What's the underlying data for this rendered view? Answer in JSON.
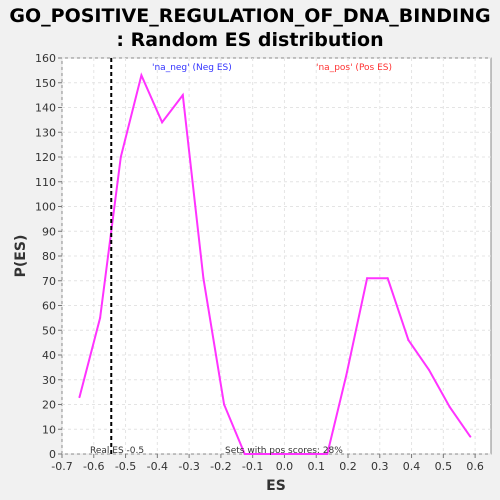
{
  "chart_data": {
    "type": "line",
    "title_line1": "GO_POSITIVE_REGULATION_OF_DNA_BINDING",
    "title_line2": ": Random ES distribution",
    "xlabel": "ES",
    "ylabel": "P(ES)",
    "xlim": [
      -0.7,
      0.65
    ],
    "ylim": [
      0,
      160
    ],
    "xticks": [
      "-0.7",
      "-0.6",
      "-0.5",
      "-0.4",
      "-0.3",
      "-0.2",
      "-0.1",
      "0.0",
      "0.1",
      "0.2",
      "0.3",
      "0.4",
      "0.5",
      "0.6"
    ],
    "yticks": [
      "0",
      "10",
      "20",
      "30",
      "40",
      "50",
      "60",
      "70",
      "80",
      "90",
      "100",
      "110",
      "120",
      "130",
      "140",
      "150",
      "160"
    ],
    "grid": true,
    "series": [
      {
        "color": "#ff33ff",
        "x": [
          -0.645,
          -0.58,
          -0.515,
          -0.45,
          -0.385,
          -0.32,
          -0.255,
          -0.19,
          -0.125,
          -0.06,
          0.005,
          0.07,
          0.135,
          0.195,
          0.26,
          0.325,
          0.39,
          0.455,
          0.52,
          0.585
        ],
        "y": [
          23,
          55,
          120,
          153,
          134,
          145,
          71,
          20,
          0,
          0,
          0,
          0,
          0,
          32,
          71,
          71,
          46,
          34,
          19,
          7
        ]
      }
    ],
    "legend": [
      {
        "label": "'na_neg' (Neg ES)",
        "color": "#3333ff"
      },
      {
        "label": "'na_pos' (Pos ES)",
        "color": "#ff3333"
      }
    ],
    "real_es": {
      "x": -0.545,
      "label": "Real ES -0.5"
    },
    "annotation": "Sets with pos scores: 28%"
  }
}
